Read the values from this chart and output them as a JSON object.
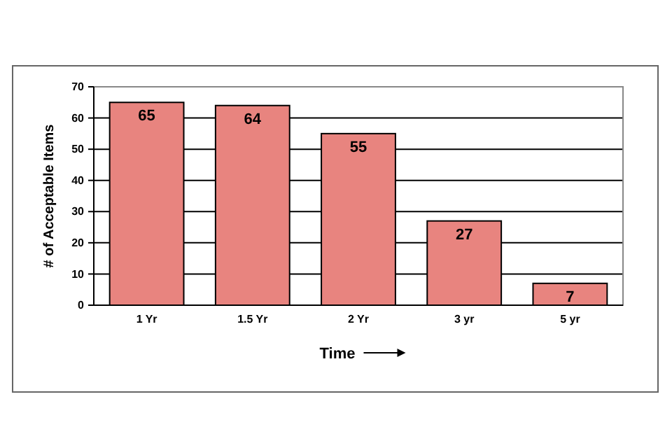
{
  "chart_data": {
    "type": "bar",
    "xlabel": "Time",
    "ylabel": "# of Acceptable Items",
    "categories": [
      "1 Yr",
      "1.5 Yr",
      "2 Yr",
      "3 yr",
      "5 yr"
    ],
    "values": [
      65,
      64,
      55,
      27,
      7
    ],
    "color": "#e8847f",
    "ylim": [
      0,
      70
    ],
    "yticks": [
      0,
      10,
      20,
      30,
      40,
      50,
      60,
      70
    ],
    "grid": "y",
    "data_labels": true
  }
}
